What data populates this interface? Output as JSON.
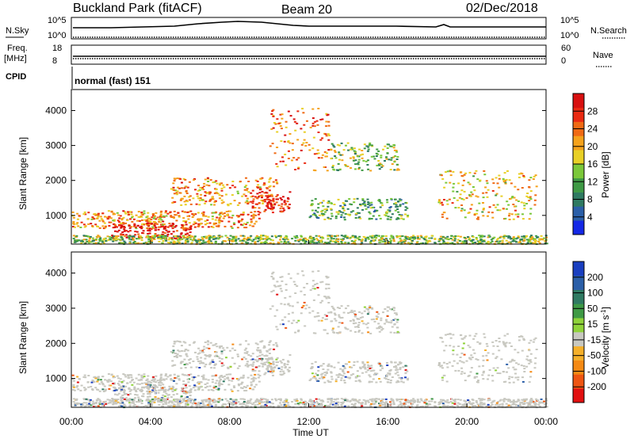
{
  "header": {
    "title": "Buckland Park (fitACF)",
    "beam": "Beam 20",
    "date": "02/Dec/2018"
  },
  "status_panels": {
    "nsky_label": "N.Sky",
    "nsky_ticks": [
      "10^5",
      "10^0"
    ],
    "nsearch_label": "N.Search",
    "nsearch_ticks": [
      "10^5",
      "10^0"
    ],
    "freq_label": "Freq.",
    "freq_unit": "[MHz]",
    "freq_ticks": [
      "18",
      "8"
    ],
    "nave_label": "Nave",
    "nave_ticks": [
      "60",
      "0"
    ],
    "cpid_label": "CPID",
    "cpid_value": "normal (fast) 151"
  },
  "chart_data": [
    {
      "type": "heatmap",
      "name": "power",
      "ylabel": "Slant Range [km]",
      "xlabel": "Time UT",
      "ylim": [
        180,
        4600
      ],
      "yticks": [
        1000,
        2000,
        3000,
        4000
      ],
      "xlim_hours": [
        0,
        24
      ],
      "colorbar": {
        "label": "Power [dB]",
        "ticks": [
          "4",
          "8",
          "12",
          "16",
          "20",
          "24",
          "28"
        ],
        "colors": [
          "#1428e6",
          "#2b5fa8",
          "#2f7a62",
          "#3f9a45",
          "#7bc83a",
          "#e8d026",
          "#f5a21c",
          "#f06a14",
          "#ea2a12",
          "#d81010"
        ]
      },
      "echo_regions": [
        {
          "t": [
            0.0,
            9.5
          ],
          "range": [
            650,
            1150
          ],
          "level": 0.7
        },
        {
          "t": [
            2.0,
            6.0
          ],
          "range": [
            350,
            800
          ],
          "level": 0.95
        },
        {
          "t": [
            0.0,
            24.0
          ],
          "range": [
            200,
            450
          ],
          "level": 0.45
        },
        {
          "t": [
            5.0,
            10.5
          ],
          "range": [
            1300,
            2100
          ],
          "level": 0.7
        },
        {
          "t": [
            9.0,
            11.0
          ],
          "range": [
            1100,
            1700
          ],
          "level": 0.9
        },
        {
          "t": [
            10.0,
            13.0
          ],
          "range": [
            2300,
            4100
          ],
          "level": 0.75
        },
        {
          "t": [
            13.0,
            16.5
          ],
          "range": [
            2300,
            3100
          ],
          "level": 0.45
        },
        {
          "t": [
            12.0,
            17.0
          ],
          "range": [
            900,
            1500
          ],
          "level": 0.35
        },
        {
          "t": [
            18.5,
            23.5
          ],
          "range": [
            900,
            2300
          ],
          "level": 0.6
        }
      ]
    },
    {
      "type": "heatmap",
      "name": "velocity",
      "ylabel": "Slant Range [km]",
      "xlabel": "Time UT",
      "ylim": [
        180,
        4600
      ],
      "yticks": [
        1000,
        2000,
        3000,
        4000
      ],
      "xlim_hours": [
        0,
        24
      ],
      "xticks": [
        "00:00",
        "04:00",
        "08:00",
        "12:00",
        "16:00",
        "20:00",
        "00:00"
      ],
      "colorbar": {
        "label": "Velocity [m s^-1]",
        "ticks": [
          "200",
          "100",
          "50",
          "15",
          "-15",
          "-50",
          "-100",
          "-200"
        ],
        "colors": [
          "#1a3fc0",
          "#2b5fa8",
          "#2f7a62",
          "#3f9a45",
          "#8fd33a",
          "#c8c8c0",
          "#f5b02a",
          "#f58a14",
          "#ee5512",
          "#e21010"
        ]
      },
      "ground_scatter_color": "#c8c8c0"
    }
  ]
}
